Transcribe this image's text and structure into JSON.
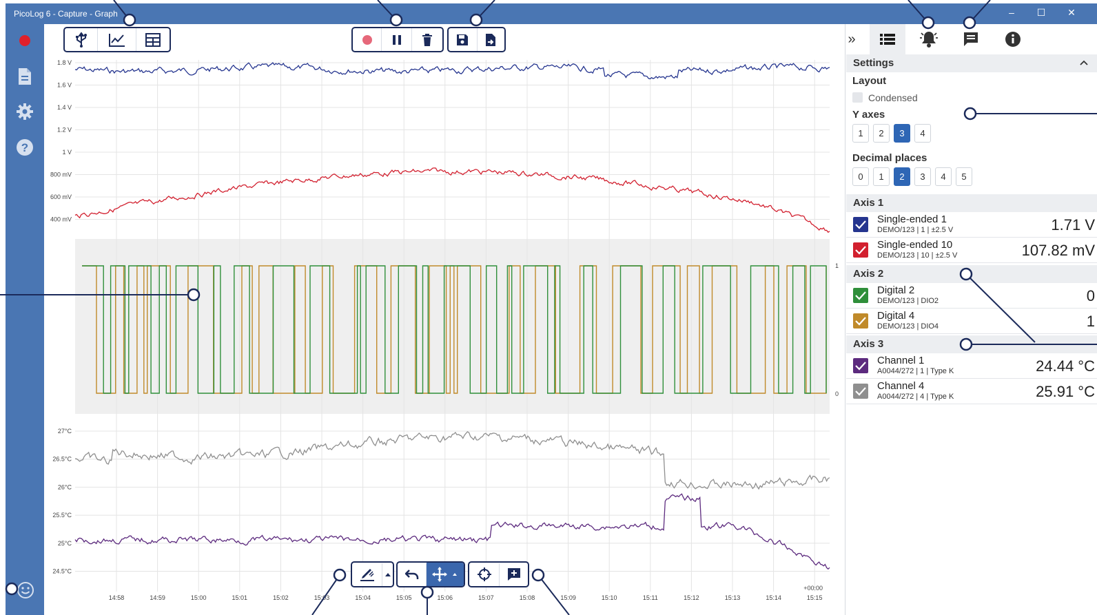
{
  "window": {
    "title": "PicoLog 6 - Capture - Graph",
    "controls": [
      "–",
      "☐",
      "✕"
    ]
  },
  "sidebar": {
    "items": [
      "record-icon",
      "file-icon",
      "gear-icon",
      "help-icon",
      "feedback-icon"
    ]
  },
  "toolbar": {
    "view_group": [
      "usb-icon",
      "graph-icon",
      "table-icon"
    ],
    "capture_group": [
      "record-icon",
      "pause-icon",
      "delete-icon"
    ],
    "file_group": [
      "save-icon",
      "export-icon"
    ]
  },
  "right_toolbar": {
    "collapse": "»",
    "items": [
      "channels-icon",
      "alarm-icon",
      "notes-icon",
      "info-icon"
    ]
  },
  "settings": {
    "title": "Settings",
    "layout_label": "Layout",
    "condensed_label": "Condensed",
    "y_axes_label": "Y axes",
    "y_axes_options": [
      "1",
      "2",
      "3",
      "4"
    ],
    "y_axes_selected": "3",
    "decimal_label": "Decimal places",
    "decimal_options": [
      "0",
      "1",
      "2",
      "3",
      "4",
      "5"
    ],
    "decimal_selected": "2"
  },
  "axes": [
    {
      "title": "Axis 1",
      "channels": [
        {
          "name": "Single-ended 1",
          "detail": "DEMO/123 | 1 | ±2.5 V",
          "value": "1.71 V",
          "color": "#25358f"
        },
        {
          "name": "Single-ended 10",
          "detail": "DEMO/123 | 10 | ±2.5 V",
          "value": "107.82 mV",
          "color": "#d2202f"
        }
      ]
    },
    {
      "title": "Axis 2",
      "channels": [
        {
          "name": "Digital 2",
          "detail": "DEMO/123 | DIO2",
          "value": "0",
          "color": "#2f8f3a"
        },
        {
          "name": "Digital 4",
          "detail": "DEMO/123 | DIO4",
          "value": "1",
          "color": "#c08a2a"
        }
      ]
    },
    {
      "title": "Axis 3",
      "channels": [
        {
          "name": "Channel 1",
          "detail": "A0044/272 | 1 | Type K",
          "value": "24.44 °C",
          "color": "#5c2a7e"
        },
        {
          "name": "Channel 4",
          "detail": "A0044/272 | 4 | Type K",
          "value": "25.91 °C",
          "color": "#8f8f8f"
        }
      ]
    }
  ],
  "graph": {
    "voltage_ticks": [
      "1.8 V",
      "1.6 V",
      "1.4 V",
      "1.2 V",
      "1 V",
      "800 mV",
      "600 mV",
      "400 mV"
    ],
    "digital_ticks": [
      "1",
      "0"
    ],
    "temp_ticks": [
      "27°C",
      "26.5°C",
      "26°C",
      "25.5°C",
      "25°C",
      "24.5°C"
    ],
    "time_ticks": [
      "14:58",
      "14:59",
      "15:00",
      "15:01",
      "15:02",
      "15:03",
      "15:04",
      "15:05",
      "15:06",
      "15:07",
      "15:08",
      "15:09",
      "15:10",
      "15:11",
      "15:12",
      "15:13",
      "15:14",
      "15:15"
    ],
    "time_offset": "+00:00",
    "colors": {
      "se1": "#25358f",
      "se10": "#d2202f",
      "dig2": "#2f8f3a",
      "dig4": "#c08a2a",
      "ch1": "#5c2a7e",
      "ch4": "#8f8f8f"
    }
  },
  "bottom_toolbar": [
    "edit-icon",
    "undo-icon",
    "pan-icon",
    "crosshair-icon",
    "add-note-icon"
  ]
}
